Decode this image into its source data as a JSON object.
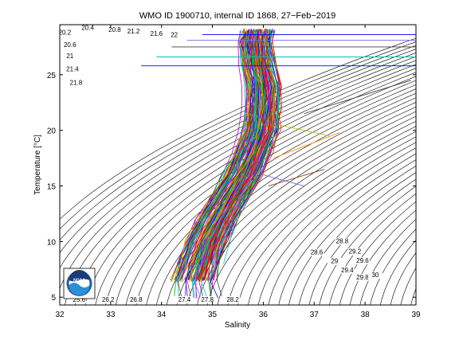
{
  "chart_data": {
    "type": "line",
    "title": "WMO ID 1900710, internal ID 1868, 27−Feb−2019",
    "xlabel": "Salinity",
    "ylabel": "Temperature [°C]",
    "xlim": [
      32,
      39
    ],
    "ylim": [
      4.3,
      29.5
    ],
    "xticks": [
      "32",
      "33",
      "34",
      "35",
      "36",
      "37",
      "38",
      "39"
    ],
    "yticks": [
      {
        "value": 5,
        "label": "5"
      },
      {
        "value": 10,
        "label": "10"
      },
      {
        "value": 15,
        "label": "15"
      },
      {
        "value": 20,
        "label": "20"
      },
      {
        "value": 25,
        "label": "25"
      }
    ],
    "grid": false,
    "density_contours": {
      "levels_visible": [
        "20",
        "20.2",
        "20.4",
        "20.6",
        "20.8",
        "21",
        "21.2",
        "21.4",
        "21.6",
        "21.8",
        "22",
        "25.6",
        "26.2",
        "26.8",
        "27.4",
        "27.8",
        "28.2",
        "28.6",
        "28.8",
        "29",
        "29.2",
        "29.4",
        "29.6",
        "29.8",
        "30"
      ],
      "labels": [
        {
          "text": "20.4",
          "s": 32.55,
          "t": 29.05
        },
        {
          "text": "20.8",
          "s": 33.08,
          "t": 28.85
        },
        {
          "text": "21.2",
          "s": 33.45,
          "t": 28.7
        },
        {
          "text": "21.6",
          "s": 33.9,
          "t": 28.5
        },
        {
          "text": "20.2",
          "s": 32.1,
          "t": 28.6
        },
        {
          "text": "20.6",
          "s": 32.2,
          "t": 27.5
        },
        {
          "text": "21",
          "s": 32.2,
          "t": 26.5
        },
        {
          "text": "21.4",
          "s": 32.25,
          "t": 25.3
        },
        {
          "text": "21.8",
          "s": 32.32,
          "t": 24.1
        },
        {
          "text": "22",
          "s": 34.25,
          "t": 28.4
        },
        {
          "text": "25.6",
          "s": 32.38,
          "t": 4.6
        },
        {
          "text": "26.2",
          "s": 32.95,
          "t": 4.6
        },
        {
          "text": "26.8",
          "s": 33.5,
          "t": 4.6
        },
        {
          "text": "27.4",
          "s": 34.45,
          "t": 4.6
        },
        {
          "text": "27.8",
          "s": 34.9,
          "t": 4.6
        },
        {
          "text": "28.2",
          "s": 35.4,
          "t": 4.6
        },
        {
          "text": "28.6",
          "s": 37.05,
          "t": 8.85
        },
        {
          "text": "28.8",
          "s": 37.55,
          "t": 9.85
        },
        {
          "text": "29",
          "s": 37.4,
          "t": 8.05
        },
        {
          "text": "29.2",
          "s": 37.8,
          "t": 8.9
        },
        {
          "text": "29.4",
          "s": 37.65,
          "t": 7.25
        },
        {
          "text": "29.6",
          "s": 37.95,
          "t": 8.1
        },
        {
          "text": "29.8",
          "s": 37.95,
          "t": 6.6
        },
        {
          "text": "30",
          "s": 38.2,
          "t": 6.8
        }
      ]
    },
    "series_summary": {
      "count": 150,
      "note_visible": "multicolored profiles",
      "colors": [
        "#0000ff",
        "#ff0000",
        "#00aa00",
        "#00bfbf",
        "#bf00bf",
        "#bfbf00",
        "#404040",
        "#ff8c00",
        "#8b4513",
        "#7b68ee",
        "#20b2aa",
        "#dc143c"
      ],
      "mean_profile": [
        {
          "s": 34.7,
          "t": 5.0
        },
        {
          "s": 34.65,
          "t": 6.5
        },
        {
          "s": 34.75,
          "t": 8.0
        },
        {
          "s": 34.9,
          "t": 10.0
        },
        {
          "s": 35.1,
          "t": 12.0
        },
        {
          "s": 35.35,
          "t": 14.0
        },
        {
          "s": 35.6,
          "t": 16.0
        },
        {
          "s": 35.8,
          "t": 18.0
        },
        {
          "s": 35.95,
          "t": 20.0
        },
        {
          "s": 36.0,
          "t": 22.0
        },
        {
          "s": 36.0,
          "t": 24.0
        },
        {
          "s": 35.9,
          "t": 26.0
        },
        {
          "s": 35.85,
          "t": 28.0
        },
        {
          "s": 35.9,
          "t": 29.0
        }
      ]
    },
    "noaa_logo_text": "NOAA"
  }
}
